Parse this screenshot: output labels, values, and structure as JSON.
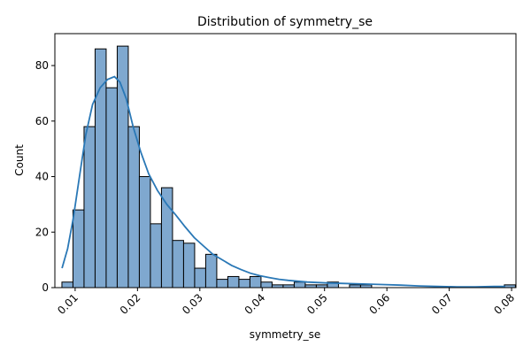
{
  "chart_data": {
    "type": "bar",
    "title": "Distribution of symmetry_se",
    "xlabel": "symmetry_se",
    "ylabel": "Count",
    "xlim": [
      0.00675,
      0.0807
    ],
    "ylim": [
      0,
      91.5
    ],
    "xticks": [
      "0.01",
      "0.02",
      "0.03",
      "0.04",
      "0.05",
      "0.06",
      "0.07",
      "0.08"
    ],
    "xtick_values": [
      0.01,
      0.02,
      0.03,
      0.04,
      0.05,
      0.06,
      0.07,
      0.08
    ],
    "yticks": [
      "0",
      "20",
      "40",
      "60",
      "80"
    ],
    "ytick_values": [
      0,
      20,
      40,
      60,
      80
    ],
    "bins": {
      "start": 0.00788,
      "width": 0.001774,
      "counts": [
        2,
        28,
        58,
        86,
        72,
        87,
        58,
        40,
        23,
        36,
        17,
        16,
        7,
        12,
        3,
        4,
        3,
        4,
        2,
        1,
        1,
        2,
        1,
        1,
        2,
        0,
        1,
        1,
        0,
        0,
        0,
        0,
        0,
        0,
        0,
        0,
        0,
        0,
        0,
        0,
        1
      ]
    },
    "kde": {
      "x": [
        0.0079,
        0.0088,
        0.0097,
        0.0107,
        0.0117,
        0.0128,
        0.014,
        0.0152,
        0.0163,
        0.0172,
        0.0182,
        0.0193,
        0.0205,
        0.0218,
        0.0232,
        0.0247,
        0.0262,
        0.0276,
        0.0291,
        0.0306,
        0.0321,
        0.0336,
        0.0351,
        0.0366,
        0.0381,
        0.0396,
        0.0412,
        0.0427,
        0.0442,
        0.0472,
        0.0502,
        0.0532,
        0.0562,
        0.0592,
        0.0622,
        0.0652,
        0.0682,
        0.0712,
        0.0742,
        0.0772,
        0.079
      ],
      "y": [
        7,
        14,
        25,
        40,
        55,
        66,
        72,
        75,
        76,
        74,
        68,
        58,
        49,
        41,
        35,
        30,
        26,
        22,
        18,
        15,
        12,
        10,
        8,
        6.5,
        5.2,
        4.3,
        3.6,
        3.0,
        2.6,
        2.0,
        1.7,
        1.5,
        1.3,
        1.1,
        0.9,
        0.6,
        0.4,
        0.3,
        0.3,
        0.4,
        0.4
      ]
    },
    "bar_color": "#7fa8cf",
    "bar_edge_color": "#000000",
    "line_color": "#2a78b6",
    "grid": false,
    "legend": false
  }
}
